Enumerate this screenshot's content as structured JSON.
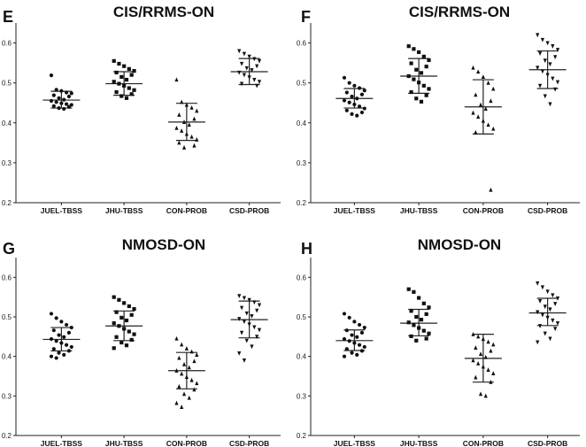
{
  "figure": {
    "panels_layout": "2x2"
  },
  "chart_data": [
    {
      "type": "scatter",
      "letter": "E",
      "title": "CIS/RRMS-ON",
      "categories": [
        "JUEL-TBSS",
        "JHU-TBSS",
        "CON-PROB",
        "CSD-PROB"
      ],
      "ylim": [
        0.2,
        0.65
      ],
      "yticks": [
        "0.2",
        "0.3",
        "0.4",
        "0.5",
        "0.6"
      ],
      "marker_shapes": [
        "circle",
        "square",
        "triangle-up",
        "triangle-down"
      ],
      "series": [
        {
          "category": "JUEL-TBSS",
          "mean": 0.457,
          "sd_low": 0.437,
          "sd_high": 0.479,
          "values": [
            0.519,
            0.483,
            0.48,
            0.476,
            0.474,
            0.469,
            0.466,
            0.462,
            0.458,
            0.455,
            0.452,
            0.449,
            0.447,
            0.445,
            0.442,
            0.44,
            0.437,
            0.435
          ]
        },
        {
          "category": "JHU-TBSS",
          "mean": 0.498,
          "sd_low": 0.469,
          "sd_high": 0.528,
          "values": [
            0.555,
            0.548,
            0.542,
            0.535,
            0.53,
            0.526,
            0.52,
            0.515,
            0.508,
            0.503,
            0.498,
            0.493,
            0.487,
            0.482,
            0.477,
            0.472,
            0.467,
            0.462
          ]
        },
        {
          "category": "CON-PROB",
          "mean": 0.402,
          "sd_low": 0.356,
          "sd_high": 0.449,
          "values": [
            0.508,
            0.452,
            0.445,
            0.438,
            0.43,
            0.42,
            0.41,
            0.402,
            0.395,
            0.387,
            0.38,
            0.372,
            0.365,
            0.358,
            0.35,
            0.343,
            0.338
          ]
        },
        {
          "category": "CSD-PROB",
          "mean": 0.528,
          "sd_low": 0.496,
          "sd_high": 0.561,
          "values": [
            0.58,
            0.573,
            0.566,
            0.56,
            0.555,
            0.548,
            0.542,
            0.537,
            0.532,
            0.526,
            0.52,
            0.514,
            0.508,
            0.503,
            0.498,
            0.493
          ]
        }
      ]
    },
    {
      "type": "scatter",
      "letter": "F",
      "title": "CIS/RRMS-ON",
      "categories": [
        "JUEL-TBSS",
        "JHU-TBSS",
        "CON-PROB",
        "CSD-PROB"
      ],
      "ylim": [
        0.2,
        0.65
      ],
      "yticks": [
        "0.2",
        "0.3",
        "0.4",
        "0.5",
        "0.6"
      ],
      "marker_shapes": [
        "circle",
        "square",
        "triangle-up",
        "triangle-down"
      ],
      "series": [
        {
          "category": "JUEL-TBSS",
          "mean": 0.461,
          "sd_low": 0.437,
          "sd_high": 0.486,
          "values": [
            0.513,
            0.5,
            0.493,
            0.487,
            0.481,
            0.476,
            0.471,
            0.466,
            0.461,
            0.456,
            0.451,
            0.446,
            0.441,
            0.436,
            0.431,
            0.426,
            0.422,
            0.418
          ]
        },
        {
          "category": "JHU-TBSS",
          "mean": 0.517,
          "sd_low": 0.474,
          "sd_high": 0.561,
          "values": [
            0.592,
            0.585,
            0.577,
            0.566,
            0.557,
            0.549,
            0.541,
            0.533,
            0.525,
            0.517,
            0.509,
            0.501,
            0.493,
            0.485,
            0.477,
            0.469,
            0.461,
            0.453
          ]
        },
        {
          "category": "CON-PROB",
          "mean": 0.44,
          "sd_low": 0.372,
          "sd_high": 0.508,
          "values": [
            0.538,
            0.528,
            0.515,
            0.5,
            0.485,
            0.47,
            0.455,
            0.445,
            0.435,
            0.425,
            0.415,
            0.405,
            0.395,
            0.385,
            0.376,
            0.232
          ]
        },
        {
          "category": "CSD-PROB",
          "mean": 0.533,
          "sd_low": 0.486,
          "sd_high": 0.58,
          "values": [
            0.62,
            0.608,
            0.6,
            0.592,
            0.583,
            0.574,
            0.565,
            0.556,
            0.547,
            0.538,
            0.529,
            0.52,
            0.511,
            0.502,
            0.493,
            0.484,
            0.467,
            0.447
          ]
        }
      ]
    },
    {
      "type": "scatter",
      "letter": "G",
      "title": "NMOSD-ON",
      "categories": [
        "JUEL-TBSS",
        "JHU-TBSS",
        "CON-PROB",
        "CSD-PROB"
      ],
      "ylim": [
        0.2,
        0.65
      ],
      "yticks": [
        "0.2",
        "0.3",
        "0.4",
        "0.5",
        "0.6"
      ],
      "marker_shapes": [
        "circle",
        "square",
        "triangle-up",
        "triangle-down"
      ],
      "series": [
        {
          "category": "JUEL-TBSS",
          "mean": 0.443,
          "sd_low": 0.414,
          "sd_high": 0.473,
          "values": [
            0.508,
            0.497,
            0.488,
            0.48,
            0.473,
            0.466,
            0.46,
            0.454,
            0.449,
            0.444,
            0.439,
            0.434,
            0.429,
            0.424,
            0.419,
            0.414,
            0.409,
            0.404,
            0.4,
            0.396
          ]
        },
        {
          "category": "JHU-TBSS",
          "mean": 0.477,
          "sd_low": 0.44,
          "sd_high": 0.515,
          "values": [
            0.55,
            0.543,
            0.535,
            0.527,
            0.52,
            0.512,
            0.505,
            0.498,
            0.491,
            0.484,
            0.477,
            0.47,
            0.463,
            0.456,
            0.449,
            0.442,
            0.435,
            0.428,
            0.421
          ]
        },
        {
          "category": "CON-PROB",
          "mean": 0.364,
          "sd_low": 0.318,
          "sd_high": 0.41,
          "values": [
            0.445,
            0.43,
            0.42,
            0.412,
            0.404,
            0.396,
            0.388,
            0.38,
            0.372,
            0.364,
            0.356,
            0.348,
            0.34,
            0.332,
            0.324,
            0.316,
            0.305,
            0.295,
            0.282,
            0.272
          ]
        },
        {
          "category": "CSD-PROB",
          "mean": 0.493,
          "sd_low": 0.447,
          "sd_high": 0.54,
          "values": [
            0.553,
            0.548,
            0.543,
            0.537,
            0.53,
            0.523,
            0.516,
            0.509,
            0.502,
            0.495,
            0.488,
            0.481,
            0.474,
            0.467,
            0.46,
            0.45,
            0.44,
            0.425,
            0.408,
            0.39
          ]
        }
      ]
    },
    {
      "type": "scatter",
      "letter": "H",
      "title": "NMOSD-ON",
      "categories": [
        "JUEL-TBSS",
        "JHU-TBSS",
        "CON-PROB",
        "CSD-PROB"
      ],
      "ylim": [
        0.2,
        0.65
      ],
      "yticks": [
        "0.2",
        "0.3",
        "0.4",
        "0.5",
        "0.6"
      ],
      "marker_shapes": [
        "circle",
        "square",
        "triangle-up",
        "triangle-down"
      ],
      "series": [
        {
          "category": "JUEL-TBSS",
          "mean": 0.44,
          "sd_low": 0.415,
          "sd_high": 0.467,
          "values": [
            0.508,
            0.498,
            0.488,
            0.48,
            0.473,
            0.466,
            0.46,
            0.454,
            0.449,
            0.444,
            0.439,
            0.434,
            0.429,
            0.424,
            0.419,
            0.414,
            0.409,
            0.404,
            0.4
          ]
        },
        {
          "category": "JHU-TBSS",
          "mean": 0.484,
          "sd_low": 0.452,
          "sd_high": 0.519,
          "values": [
            0.57,
            0.563,
            0.548,
            0.534,
            0.524,
            0.515,
            0.507,
            0.5,
            0.493,
            0.486,
            0.479,
            0.472,
            0.465,
            0.458,
            0.451,
            0.445,
            0.44
          ]
        },
        {
          "category": "CON-PROB",
          "mean": 0.395,
          "sd_low": 0.335,
          "sd_high": 0.456,
          "values": [
            0.456,
            0.45,
            0.444,
            0.437,
            0.43,
            0.422,
            0.414,
            0.406,
            0.398,
            0.39,
            0.382,
            0.374,
            0.366,
            0.357,
            0.347,
            0.335,
            0.305,
            0.3
          ]
        },
        {
          "category": "CSD-PROB",
          "mean": 0.51,
          "sd_low": 0.478,
          "sd_high": 0.547,
          "values": [
            0.585,
            0.575,
            0.564,
            0.555,
            0.547,
            0.54,
            0.533,
            0.526,
            0.519,
            0.512,
            0.505,
            0.498,
            0.491,
            0.484,
            0.477,
            0.47,
            0.458,
            0.445,
            0.436
          ]
        }
      ]
    }
  ]
}
